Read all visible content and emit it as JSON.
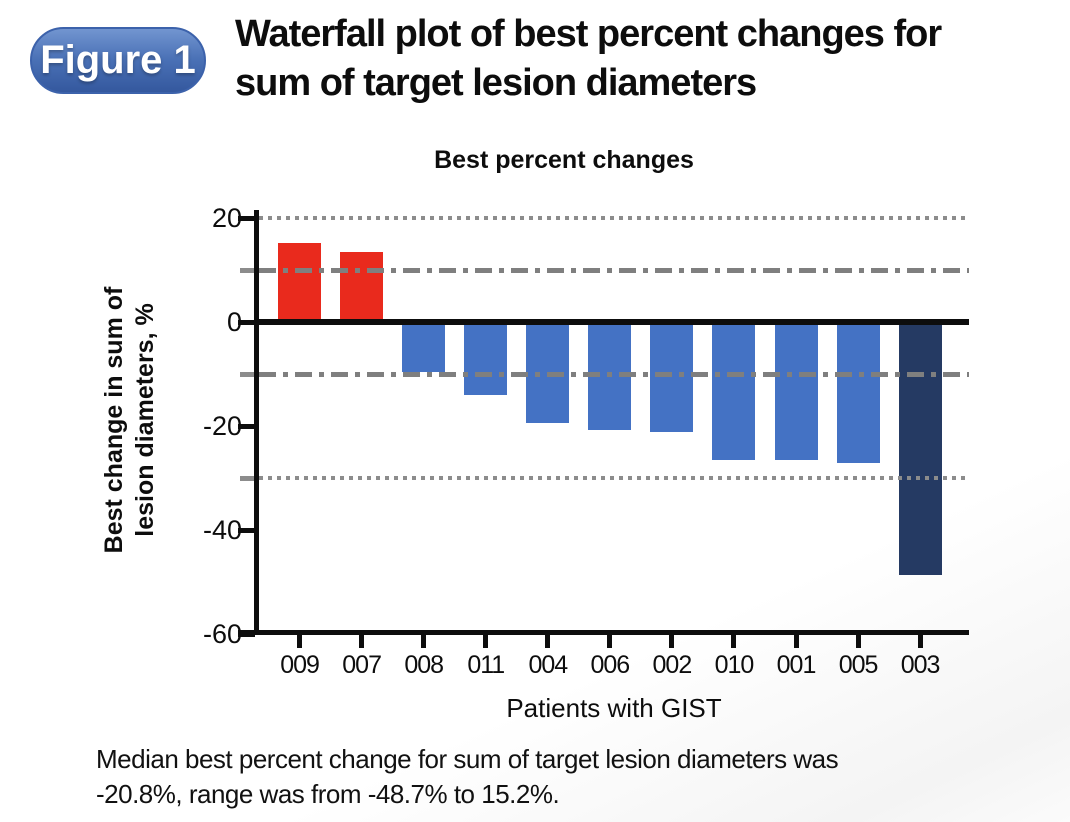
{
  "badge": {
    "label": "Figure 1"
  },
  "title": {
    "line1": "Waterfall plot of best percent changes for",
    "line2": "sum of target lesion diameters"
  },
  "chart": {
    "title": "Best percent changes",
    "y_axis_title_line1": "Best change in sum of",
    "y_axis_title_line2": "lesion diameters, %",
    "x_axis_title": "Patients with GIST"
  },
  "chart_data": {
    "type": "bar",
    "title": "Best percent changes",
    "xlabel": "Patients with GIST",
    "ylabel": "Best change in sum of lesion diameters, %",
    "categories": [
      "009",
      "007",
      "008",
      "011",
      "004",
      "006",
      "002",
      "010",
      "001",
      "005",
      "003"
    ],
    "values": [
      15.2,
      13.4,
      -9.7,
      -14.1,
      -19.5,
      -20.8,
      -21.2,
      -26.5,
      -26.5,
      -27.2,
      -48.7
    ],
    "bar_colors": [
      "red",
      "red",
      "blue",
      "blue",
      "blue",
      "blue",
      "blue",
      "blue",
      "blue",
      "blue",
      "navy"
    ],
    "ylim": [
      -60,
      22
    ],
    "yticks": [
      20,
      0,
      -20,
      -40,
      -60
    ],
    "minor_yticks": [
      10,
      -10,
      -30
    ],
    "legend": "none",
    "grid": "reference-lines-only",
    "reference_lines": [
      {
        "y": 20,
        "style": "dotted"
      },
      {
        "y": 10,
        "style": "dashdot"
      },
      {
        "y": 0,
        "style": "solid"
      },
      {
        "y": -10,
        "style": "dashdot"
      },
      {
        "y": -30,
        "style": "dotted"
      }
    ]
  },
  "caption": {
    "line1": "Median best percent change for sum of target lesion diameters was",
    "line2": "-20.8%, range was from -48.7% to 15.2%."
  },
  "colors": {
    "red": "#e92a1d",
    "blue": "#4472c4",
    "navy": "#253a63",
    "axis": "#0d0d0d",
    "grid_gray": "#8c8c8c"
  }
}
